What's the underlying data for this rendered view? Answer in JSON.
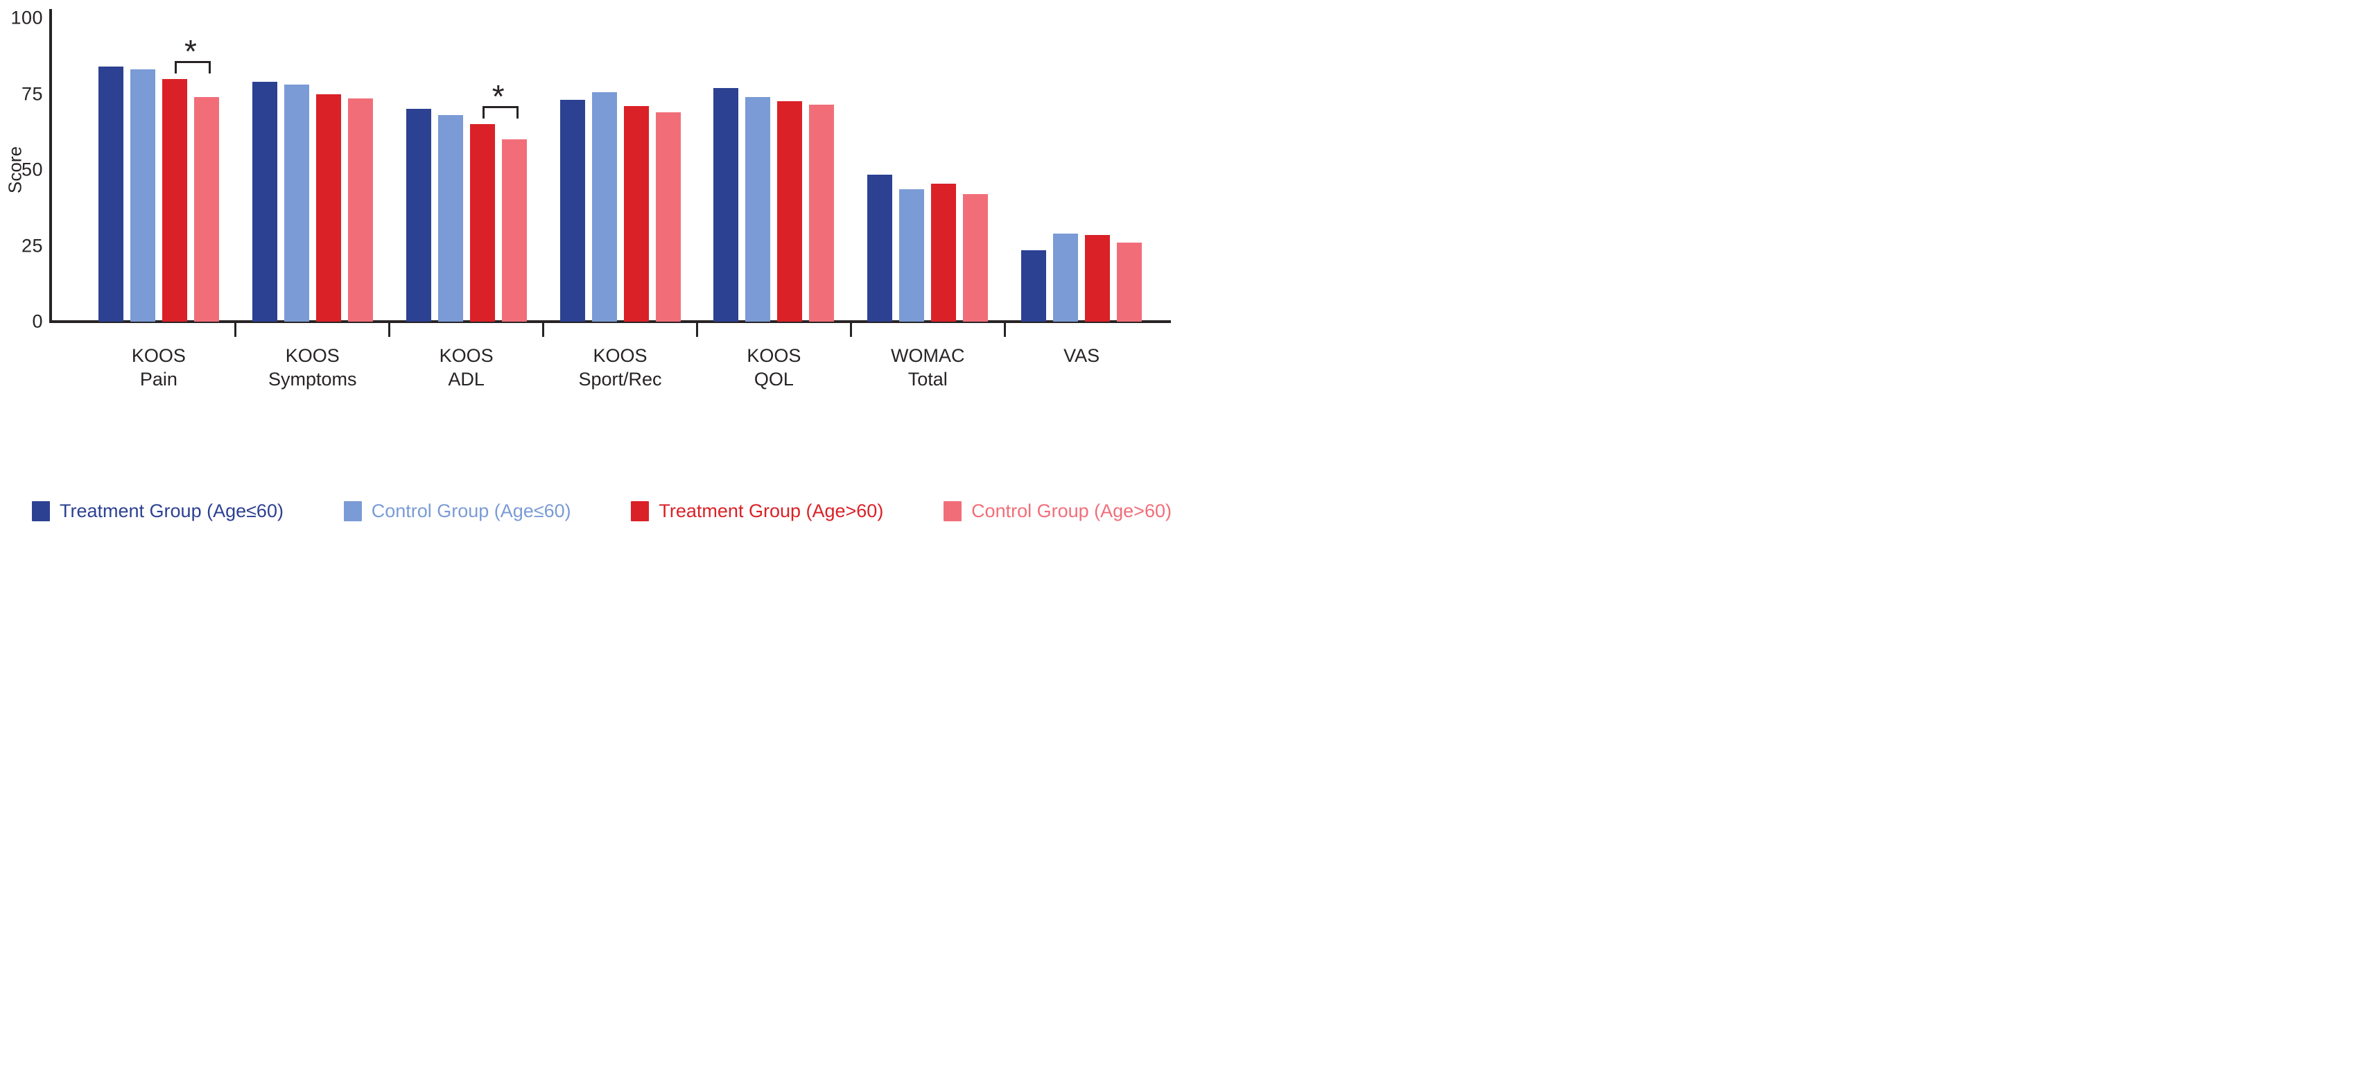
{
  "chart_data": {
    "type": "bar",
    "title": "",
    "ylabel": "Score",
    "xlabel": "",
    "ylim": [
      0,
      100
    ],
    "yticks": [
      100,
      75,
      50,
      25,
      0
    ],
    "grid": false,
    "legend_position": "bottom",
    "axis_color": "#272324",
    "categories": [
      "KOOS Pain",
      "KOOS Symptoms",
      "KOOS ADL",
      "KOOS Sport/Rec",
      "KOOS QOL",
      "WOMAC Total",
      "VAS"
    ],
    "category_label_lines": [
      [
        "KOOS",
        "Pain"
      ],
      [
        "KOOS",
        "Symptoms"
      ],
      [
        "KOOS",
        "ADL"
      ],
      [
        "KOOS",
        "Sport/Rec"
      ],
      [
        "KOOS",
        "QOL"
      ],
      [
        "WOMAC",
        "Total"
      ],
      [
        "VAS"
      ]
    ],
    "series": [
      {
        "name": "Treatment Group (Age≤60)",
        "color": "#2C4192",
        "values": [
          84,
          79,
          70,
          73,
          77,
          48.5,
          23.5
        ]
      },
      {
        "name": "Control Group (Age≤60)",
        "color": "#7A9BD5",
        "values": [
          83,
          78,
          68,
          75.5,
          74,
          43.5,
          29
        ]
      },
      {
        "name": "Treatment Group (Age>60)",
        "color": "#DA2127",
        "values": [
          80,
          75,
          65,
          71,
          72.5,
          45.5,
          28.5
        ]
      },
      {
        "name": "Control Group (Age>60)",
        "color": "#F16E79",
        "values": [
          74,
          73.5,
          60,
          69,
          71.5,
          42,
          26
        ]
      }
    ],
    "annotations": [
      {
        "category": "KOOS Pain",
        "category_index": 0,
        "between_series": [
          2,
          3
        ],
        "symbol": "*"
      },
      {
        "category": "KOOS ADL",
        "category_index": 2,
        "between_series": [
          2,
          3
        ],
        "symbol": "*"
      }
    ]
  }
}
